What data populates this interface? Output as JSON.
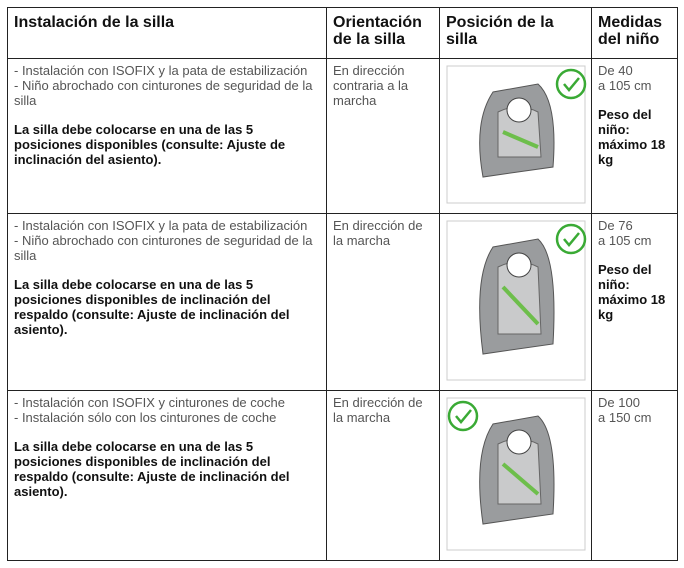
{
  "header": [
    "Instalación de la silla",
    "Orientación de la silla",
    "Posición de la silla",
    "Medidas del niño"
  ],
  "rows": [
    {
      "installation": [
        "- Instalación con ISOFIX y la pata de estabilización",
        "- Niño abrochado con cinturones de seguridad de la silla"
      ],
      "note": "La silla debe colocarse en una de las 5 posiciones disponibles (consulte: Ajuste de inclinación del asiento).",
      "orientation": "En dirección contraria a la marcha",
      "height": [
        "De 40",
        "a 105 cm"
      ],
      "weight": "Peso del niño: máximo 18 kg"
    },
    {
      "installation": [
        "- Instalación con ISOFIX y la pata de estabilización",
        "- Niño abrochado con cinturones de seguridad de la silla"
      ],
      "note": "La silla debe colocarse en una de las 5 posiciones disponibles de inclinación del respaldo (consulte: Ajuste de inclinación del asiento).",
      "orientation": "En dirección de la marcha",
      "height": [
        "De 76",
        "a 105 cm"
      ],
      "weight": "Peso del niño: máximo 18 kg"
    },
    {
      "installation": [
        "- Instalación con ISOFIX y cinturones de coche",
        "- Instalación sólo con los cinturones de coche"
      ],
      "note": "La silla debe colocarse en una de las 5 posiciones disponibles de inclinación del respaldo (consulte: Ajuste de inclinación del asiento).",
      "orientation": "En dirección de la marcha",
      "height": [
        "De 100",
        "a 150 cm"
      ]
    }
  ]
}
